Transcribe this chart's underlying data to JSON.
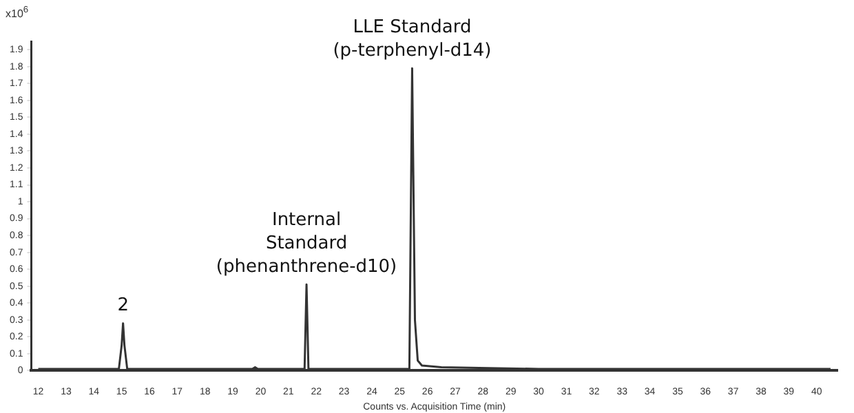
{
  "chart_data": {
    "type": "line",
    "xlabel": "Counts vs. Acquisition Time (min)",
    "ylabel": "x10$^{6}$",
    "xlim": [
      11.75,
      40.75
    ],
    "xticks": [
      12,
      13,
      14,
      15,
      16,
      17,
      18,
      19,
      20,
      21,
      22,
      23,
      24,
      25,
      26,
      27,
      28,
      29,
      30,
      31,
      32,
      33,
      34,
      35,
      36,
      37,
      38,
      39,
      40
    ],
    "ylim": [
      0,
      1.95
    ],
    "yticks": [
      0,
      0.1,
      0.2,
      0.3,
      0.4,
      0.5,
      0.6,
      0.7,
      0.8,
      0.9,
      1,
      1.1,
      1.2,
      1.3,
      1.4,
      1.5,
      1.6,
      1.7,
      1.8,
      1.9
    ],
    "grid": false,
    "legend": false,
    "marker": "none",
    "line_style": "solid",
    "series": [
      {
        "color": "#333333",
        "x": [
          12,
          14.9,
          15.0,
          15.05,
          15.1,
          15.2,
          19.7,
          19.8,
          19.9,
          21.58,
          21.65,
          21.72,
          25.35,
          25.45,
          25.55,
          25.65,
          25.8,
          26.5,
          30,
          40,
          40.5
        ],
        "values": [
          0.01,
          0.01,
          0.15,
          0.28,
          0.15,
          0.01,
          0.01,
          0.02,
          0.01,
          0.01,
          0.51,
          0.01,
          0.01,
          1.79,
          0.3,
          0.06,
          0.03,
          0.02,
          0.01,
          0.01,
          0.01
        ]
      }
    ],
    "annotations": [
      {
        "text": "2",
        "x": 15.05,
        "y": 0.28
      },
      {
        "text": "Internal\nStandard\n(phenanthrene-d10)",
        "x": 21.65,
        "y": 0.51
      },
      {
        "text": "LLE Standard\n(p-terphenyl-d14)",
        "x": 25.45,
        "y": 1.79
      }
    ]
  }
}
